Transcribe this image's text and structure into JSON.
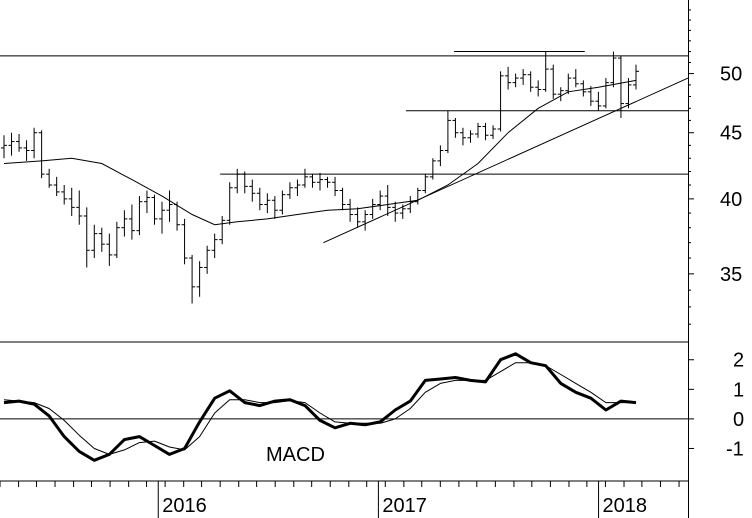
{
  "chart_data": [
    {
      "type": "ohlc",
      "panel": "price",
      "scale": "log",
      "ylim": [
        31,
        57
      ],
      "x_range": [
        "2015-02",
        "2018-05"
      ],
      "yticks": [
        35,
        40,
        45,
        50
      ],
      "ytick_labels": [
        "35",
        "40",
        "45",
        "50"
      ],
      "series": [
        {
          "name": "",
          "kind": "weekly-bars",
          "values": [
            [
              43.8,
              44.8,
              43.0,
              44.0
            ],
            [
              44.0,
              45.0,
              43.2,
              44.3
            ],
            [
              44.3,
              44.9,
              43.5,
              43.8
            ],
            [
              43.8,
              44.4,
              42.8,
              43.6
            ],
            [
              43.6,
              45.4,
              43.0,
              45.0
            ],
            [
              45.0,
              45.2,
              41.5,
              41.8
            ],
            [
              41.8,
              42.2,
              40.8,
              41.0
            ],
            [
              41.0,
              41.6,
              40.2,
              40.5
            ],
            [
              40.5,
              41.0,
              39.6,
              40.0
            ],
            [
              40.0,
              40.8,
              38.8,
              39.4
            ],
            [
              39.4,
              40.6,
              38.2,
              38.8
            ],
            [
              38.8,
              39.4,
              35.4,
              36.5
            ],
            [
              36.5,
              38.2,
              36.0,
              37.6
            ],
            [
              37.6,
              38.0,
              36.4,
              36.9
            ],
            [
              36.9,
              37.6,
              35.5,
              36.2
            ],
            [
              36.2,
              38.4,
              36.0,
              38.0
            ],
            [
              38.0,
              39.2,
              37.4,
              38.6
            ],
            [
              38.6,
              39.6,
              37.2,
              37.8
            ],
            [
              37.8,
              40.2,
              37.5,
              39.8
            ],
            [
              39.8,
              40.6,
              39.0,
              40.1
            ],
            [
              40.1,
              40.3,
              38.2,
              38.6
            ],
            [
              38.6,
              39.8,
              37.6,
              39.2
            ],
            [
              39.2,
              40.6,
              38.4,
              39.6
            ],
            [
              39.6,
              39.8,
              37.8,
              38.2
            ],
            [
              38.2,
              38.6,
              35.6,
              36.0
            ],
            [
              36.0,
              36.2,
              33.2,
              34.2
            ],
            [
              34.2,
              35.8,
              33.6,
              35.4
            ],
            [
              35.4,
              36.8,
              35.0,
              36.5
            ],
            [
              36.5,
              37.6,
              36.0,
              37.2
            ],
            [
              37.2,
              38.8,
              36.9,
              38.5
            ],
            [
              38.5,
              41.2,
              38.2,
              40.8
            ],
            [
              40.8,
              42.2,
              40.4,
              41.8
            ],
            [
              41.8,
              42.0,
              40.4,
              40.9
            ],
            [
              40.9,
              41.4,
              39.8,
              40.4
            ],
            [
              40.4,
              40.8,
              39.2,
              39.6
            ],
            [
              39.6,
              40.4,
              39.0,
              39.9
            ],
            [
              39.9,
              40.2,
              38.6,
              39.2
            ],
            [
              39.2,
              40.6,
              38.9,
              40.3
            ],
            [
              40.3,
              41.2,
              40.0,
              40.8
            ],
            [
              40.8,
              41.4,
              40.2,
              41.0
            ],
            [
              41.0,
              42.2,
              40.8,
              41.6
            ],
            [
              41.6,
              41.8,
              40.8,
              41.2
            ],
            [
              41.2,
              41.9,
              40.6,
              41.4
            ],
            [
              41.4,
              41.6,
              40.8,
              41.2
            ],
            [
              41.2,
              41.6,
              40.2,
              40.6
            ],
            [
              40.6,
              40.8,
              39.2,
              39.6
            ],
            [
              39.6,
              40.0,
              38.4,
              38.9
            ],
            [
              38.9,
              39.4,
              38.0,
              38.4
            ],
            [
              38.4,
              39.2,
              37.8,
              38.9
            ],
            [
              38.9,
              40.0,
              38.6,
              39.6
            ],
            [
              39.6,
              40.6,
              39.2,
              40.2
            ],
            [
              40.2,
              41.0,
              38.8,
              39.4
            ],
            [
              39.4,
              39.8,
              38.4,
              39.0
            ],
            [
              39.0,
              39.6,
              38.6,
              39.3
            ],
            [
              39.3,
              40.2,
              39.0,
              39.8
            ],
            [
              39.8,
              40.8,
              39.6,
              40.6
            ],
            [
              40.6,
              41.8,
              40.4,
              41.6
            ],
            [
              41.6,
              43.0,
              41.4,
              42.8
            ],
            [
              42.8,
              44.0,
              42.4,
              43.6
            ],
            [
              43.6,
              46.8,
              43.4,
              46.0
            ],
            [
              46.0,
              46.2,
              44.6,
              45.0
            ],
            [
              45.0,
              45.4,
              44.0,
              44.6
            ],
            [
              44.6,
              45.2,
              44.2,
              44.9
            ],
            [
              44.9,
              45.8,
              44.6,
              45.5
            ],
            [
              45.5,
              45.8,
              44.4,
              44.8
            ],
            [
              44.8,
              45.6,
              44.5,
              45.3
            ],
            [
              45.3,
              50.2,
              45.1,
              49.8
            ],
            [
              49.8,
              50.6,
              48.6,
              49.2
            ],
            [
              49.2,
              50.0,
              48.8,
              49.6
            ],
            [
              49.6,
              50.4,
              49.0,
              49.9
            ],
            [
              49.9,
              50.2,
              48.4,
              48.8
            ],
            [
              48.8,
              49.4,
              48.0,
              48.6
            ],
            [
              48.6,
              52.0,
              48.4,
              50.4
            ],
            [
              50.4,
              50.8,
              47.8,
              48.2
            ],
            [
              48.2,
              48.8,
              47.6,
              48.5
            ],
            [
              48.5,
              50.0,
              48.2,
              49.6
            ],
            [
              49.6,
              50.4,
              48.8,
              49.1
            ],
            [
              49.1,
              49.4,
              48.0,
              48.4
            ],
            [
              48.4,
              48.9,
              47.2,
              47.6
            ],
            [
              47.6,
              48.4,
              46.8,
              47.2
            ],
            [
              47.2,
              49.6,
              47.0,
              49.2
            ],
            [
              49.2,
              52.0,
              48.8,
              51.4
            ],
            [
              51.4,
              51.6,
              46.2,
              47.4
            ],
            [
              47.4,
              49.6,
              47.0,
              49.0
            ],
            [
              49.0,
              50.8,
              48.6,
              50.2
            ]
          ]
        },
        {
          "name": "",
          "kind": "moving-average",
          "values": [
            [
              0,
              42.6
            ],
            [
              5,
              42.8
            ],
            [
              9,
              43.0
            ],
            [
              13,
              42.6
            ],
            [
              17,
              41.4
            ],
            [
              21,
              40.2
            ],
            [
              25,
              38.9
            ],
            [
              28,
              38.2
            ],
            [
              31,
              38.4
            ],
            [
              35,
              38.6
            ],
            [
              39,
              38.9
            ],
            [
              43,
              39.2
            ],
            [
              47,
              39.3
            ],
            [
              51,
              39.6
            ],
            [
              55,
              39.9
            ],
            [
              59,
              41.0
            ],
            [
              63,
              42.6
            ],
            [
              67,
              45.0
            ],
            [
              71,
              47.0
            ],
            [
              75,
              48.4
            ],
            [
              79,
              48.8
            ],
            [
              84,
              49.4
            ]
          ]
        }
      ],
      "annotations": [
        {
          "kind": "horizontal",
          "y": 51.6,
          "from": 0,
          "to": 100
        },
        {
          "kind": "horizontal",
          "y": 52.0,
          "from": 66,
          "to": 85
        },
        {
          "kind": "horizontal",
          "y": 46.8,
          "from": 59,
          "to": 100
        },
        {
          "kind": "horizontal",
          "y": 41.8,
          "from": 32,
          "to": 100
        },
        {
          "kind": "trendline",
          "from": [
            47,
            37.0
          ],
          "to": [
            100,
            49.6
          ]
        }
      ]
    },
    {
      "type": "line",
      "panel": "macd",
      "label": "MACD",
      "ylim": [
        -2.1,
        2.6
      ],
      "yticks": [
        -1,
        0,
        1,
        2
      ],
      "ytick_labels": [
        "-1",
        "0",
        "1",
        "2"
      ],
      "x": [
        0,
        2,
        4,
        6,
        8,
        10,
        12,
        14,
        16,
        18,
        20,
        22,
        24,
        26,
        28,
        30,
        32,
        34,
        36,
        38,
        40,
        42,
        44,
        46,
        48,
        50,
        52,
        54,
        56,
        58,
        60,
        62,
        64,
        66,
        68,
        70,
        72,
        74,
        76,
        78,
        80,
        82,
        84
      ],
      "series": [
        {
          "name": "",
          "style": "thick",
          "values": [
            0.55,
            0.6,
            0.5,
            0.1,
            -0.6,
            -1.1,
            -1.4,
            -1.2,
            -0.7,
            -0.6,
            -0.9,
            -1.2,
            -1.0,
            -0.1,
            0.7,
            0.95,
            0.55,
            0.45,
            0.6,
            0.65,
            0.45,
            -0.05,
            -0.3,
            -0.15,
            -0.2,
            -0.1,
            0.3,
            0.6,
            1.3,
            1.35,
            1.4,
            1.3,
            1.25,
            2.0,
            2.2,
            1.9,
            1.8,
            1.2,
            0.9,
            0.7,
            0.3,
            0.6,
            0.55
          ]
        },
        {
          "name": "",
          "style": "thin",
          "values": [
            0.65,
            0.6,
            0.55,
            0.35,
            -0.05,
            -0.55,
            -1.0,
            -1.2,
            -1.05,
            -0.8,
            -0.75,
            -0.95,
            -1.05,
            -0.6,
            0.2,
            0.65,
            0.65,
            0.55,
            0.55,
            0.62,
            0.55,
            0.2,
            -0.1,
            -0.15,
            -0.15,
            -0.15,
            0.0,
            0.35,
            0.9,
            1.2,
            1.3,
            1.3,
            1.3,
            1.6,
            1.9,
            1.9,
            1.8,
            1.5,
            1.2,
            0.9,
            0.55,
            0.55,
            0.55
          ]
        }
      ]
    }
  ],
  "x_axis": {
    "labels": [
      {
        "text": "2016",
        "pos": 23
      },
      {
        "text": "2017",
        "pos": 55
      },
      {
        "text": "2018",
        "pos": 87
      }
    ],
    "minor_ticks": [
      0,
      2.7,
      5.3,
      8,
      10.7,
      13.3,
      16,
      18.7,
      21.3,
      24,
      26.7,
      29.3,
      32,
      34.7,
      37.3,
      40,
      42.7,
      45.3,
      48,
      50.7,
      53.3,
      56,
      58.7,
      61.3,
      64,
      66.7,
      69.3,
      72,
      74.7,
      77.3,
      80,
      82.7,
      85.3,
      88,
      90.7,
      93.3,
      96,
      98.7
    ]
  }
}
